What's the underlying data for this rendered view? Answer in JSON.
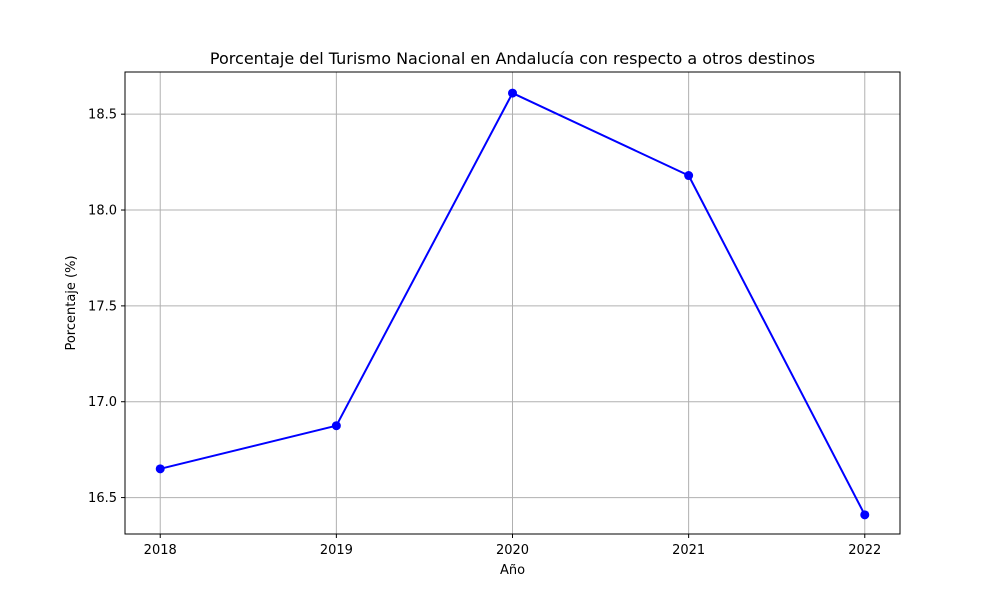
{
  "chart_data": {
    "type": "line",
    "title": "Porcentaje del Turismo Nacional en Andalucía con respecto a otros destinos",
    "xlabel": "Año",
    "ylabel": "Porcentaje (%)",
    "x": [
      2018,
      2019,
      2020,
      2021,
      2022
    ],
    "series": [
      {
        "values": [
          16.65,
          16.875,
          18.61,
          18.18,
          16.41
        ],
        "color": "#0000ff",
        "marker": "circle"
      }
    ],
    "xlim": [
      2017.8,
      2022.2
    ],
    "ylim": [
      16.31,
      18.72
    ],
    "xticks": [
      "2018",
      "2019",
      "2020",
      "2021",
      "2022"
    ],
    "yticks": [
      "16.5",
      "17.0",
      "17.5",
      "18.0",
      "18.5"
    ],
    "ytick_values": [
      16.5,
      17.0,
      17.5,
      18.0,
      18.5
    ],
    "grid": true,
    "legend": "none"
  }
}
